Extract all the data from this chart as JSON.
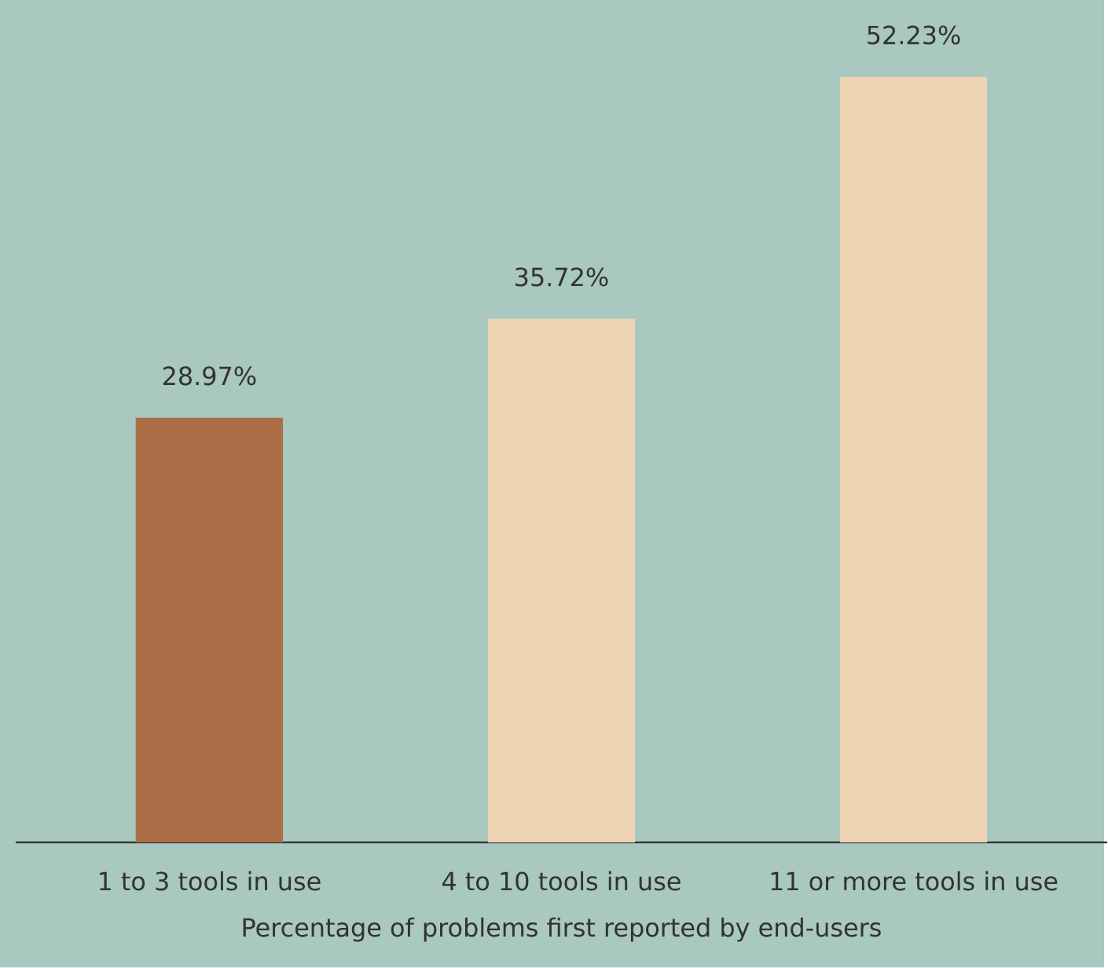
{
  "chart_data": {
    "type": "bar",
    "xlabel": "Percentage of problems first reported by end-users",
    "categories": [
      "1 to 3 tools in use",
      "4 to 10 tools in use",
      "11 or more tools in use"
    ],
    "values": [
      28.97,
      35.72,
      52.23
    ],
    "colors": [
      "#ab6e47",
      "#edd3b2",
      "#edd3b2"
    ],
    "value_labels": [
      "28.97%",
      "35.72%",
      "52.23%"
    ]
  }
}
